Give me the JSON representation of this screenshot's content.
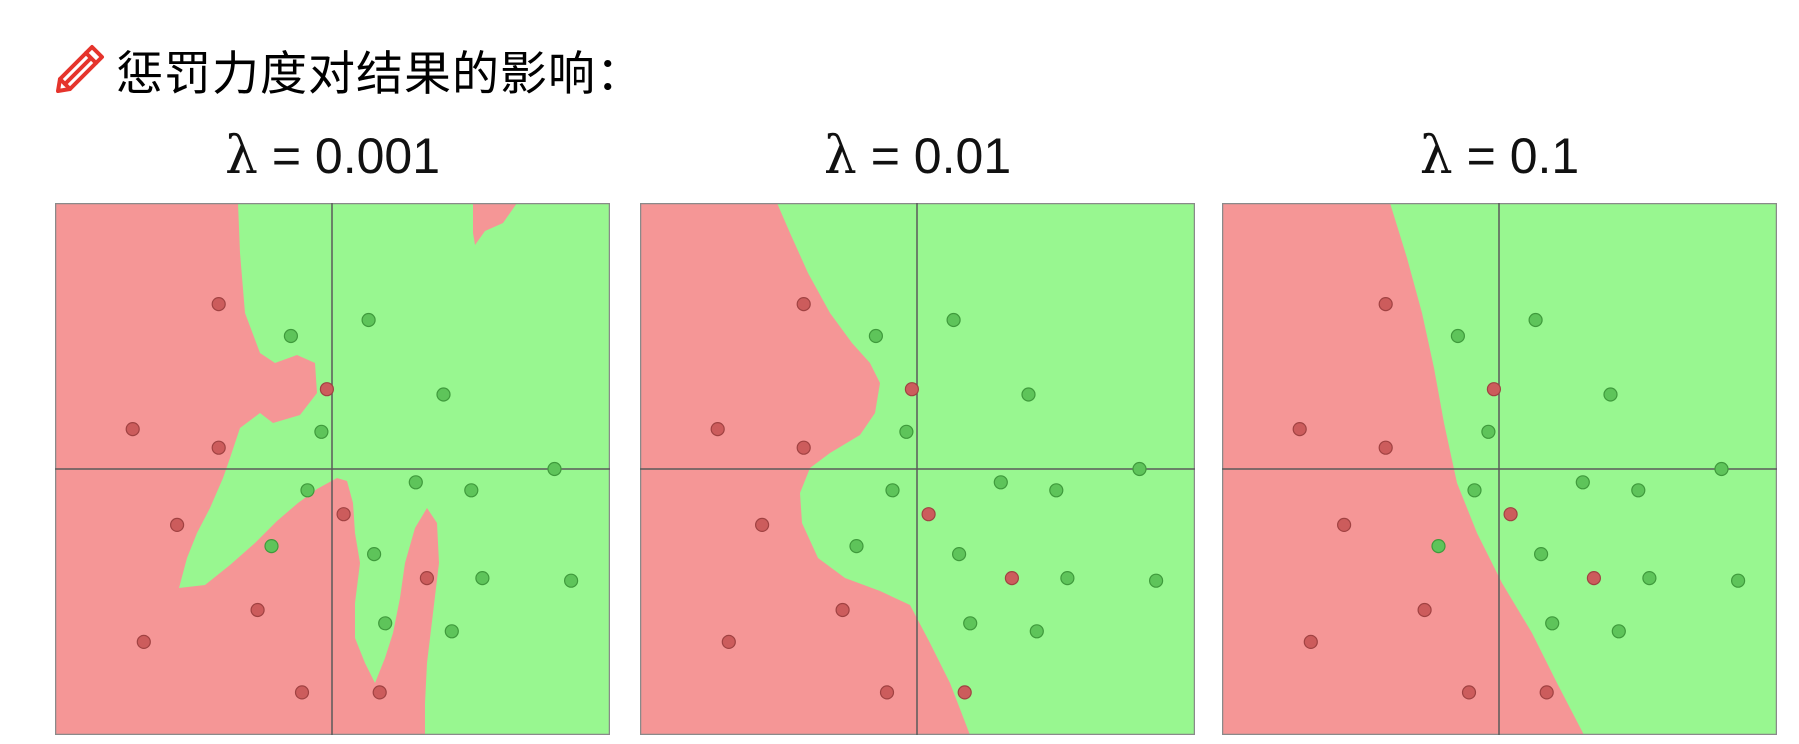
{
  "heading": {
    "icon": "pencil-icon",
    "text": "惩罚力度对结果的影响："
  },
  "colors": {
    "class_red_region": "#f59696",
    "class_green_region": "#98f790",
    "red_point": "#cc5c5c",
    "green_point": "#5ec45a",
    "axes": "#5a5a5a",
    "heading_icon": "#e5342c"
  },
  "panels": [
    {
      "title_symbol": "λ",
      "title_rest": " = 0.001"
    },
    {
      "title_symbol": "λ",
      "title_rest": " = 0.01"
    },
    {
      "title_symbol": "λ",
      "title_rest": " = 0.1"
    }
  ],
  "chart_data": [
    {
      "type": "scatter",
      "title": "λ = 0.001",
      "xlim": [
        -1,
        1
      ],
      "ylim": [
        -1,
        1
      ],
      "grid": false,
      "series": [
        {
          "color": "#cc5c5c",
          "points": [
            [
              -0.41,
              0.62
            ],
            [
              -0.72,
              0.15
            ],
            [
              -0.41,
              0.08
            ],
            [
              -0.02,
              0.3
            ],
            [
              -0.56,
              -0.21
            ],
            [
              -0.27,
              -0.53
            ],
            [
              -0.68,
              -0.65
            ],
            [
              -0.11,
              -0.84
            ],
            [
              0.04,
              -0.17
            ],
            [
              0.17,
              -0.84
            ],
            [
              0.34,
              -0.41
            ]
          ]
        },
        {
          "color": "#5ec45a",
          "points": [
            [
              -0.15,
              0.5
            ],
            [
              0.13,
              0.56
            ],
            [
              0.4,
              0.28
            ],
            [
              -0.04,
              0.14
            ],
            [
              -0.09,
              -0.08
            ],
            [
              0.3,
              -0.05
            ],
            [
              0.5,
              -0.08
            ],
            [
              0.8,
              0.0
            ],
            [
              -0.22,
              -0.29
            ],
            [
              0.15,
              -0.32
            ],
            [
              0.54,
              -0.41
            ],
            [
              0.86,
              -0.42
            ],
            [
              0.19,
              -0.58
            ],
            [
              0.43,
              -0.61
            ]
          ]
        }
      ]
    },
    {
      "type": "scatter",
      "title": "λ = 0.01",
      "xlim": [
        -1,
        1
      ],
      "ylim": [
        -1,
        1
      ],
      "grid": false,
      "series": [
        {
          "color": "#cc5c5c",
          "points": [
            [
              -0.41,
              0.62
            ],
            [
              -0.72,
              0.15
            ],
            [
              -0.41,
              0.08
            ],
            [
              -0.02,
              0.3
            ],
            [
              -0.56,
              -0.21
            ],
            [
              0.04,
              -0.17
            ],
            [
              0.34,
              -0.41
            ],
            [
              -0.27,
              -0.53
            ],
            [
              -0.68,
              -0.65
            ],
            [
              -0.11,
              -0.84
            ],
            [
              0.17,
              -0.84
            ]
          ]
        },
        {
          "color": "#5ec45a",
          "points": [
            [
              -0.15,
              0.5
            ],
            [
              0.13,
              0.56
            ],
            [
              0.4,
              0.28
            ],
            [
              -0.04,
              0.14
            ],
            [
              -0.09,
              -0.08
            ],
            [
              0.3,
              -0.05
            ],
            [
              0.5,
              -0.08
            ],
            [
              0.8,
              0.0
            ],
            [
              -0.22,
              -0.29
            ],
            [
              0.15,
              -0.32
            ],
            [
              0.54,
              -0.41
            ],
            [
              0.86,
              -0.42
            ],
            [
              0.19,
              -0.58
            ],
            [
              0.43,
              -0.61
            ]
          ]
        }
      ]
    },
    {
      "type": "scatter",
      "title": "λ = 0.1",
      "xlim": [
        -1,
        1
      ],
      "ylim": [
        -1,
        1
      ],
      "grid": false,
      "series": [
        {
          "color": "#cc5c5c",
          "points": [
            [
              -0.41,
              0.62
            ],
            [
              -0.72,
              0.15
            ],
            [
              -0.41,
              0.08
            ],
            [
              -0.02,
              0.3
            ],
            [
              -0.56,
              -0.21
            ],
            [
              0.04,
              -0.17
            ],
            [
              0.34,
              -0.41
            ],
            [
              -0.27,
              -0.53
            ],
            [
              -0.68,
              -0.65
            ],
            [
              -0.11,
              -0.84
            ],
            [
              0.17,
              -0.84
            ]
          ]
        },
        {
          "color": "#5ec45a",
          "points": [
            [
              -0.15,
              0.5
            ],
            [
              0.13,
              0.56
            ],
            [
              0.4,
              0.28
            ],
            [
              -0.04,
              0.14
            ],
            [
              -0.09,
              -0.08
            ],
            [
              0.3,
              -0.05
            ],
            [
              0.5,
              -0.08
            ],
            [
              0.8,
              0.0
            ],
            [
              -0.22,
              -0.29
            ],
            [
              0.15,
              -0.32
            ],
            [
              0.54,
              -0.41
            ],
            [
              0.86,
              -0.42
            ],
            [
              0.19,
              -0.58
            ],
            [
              0.43,
              -0.61
            ]
          ]
        }
      ]
    }
  ]
}
